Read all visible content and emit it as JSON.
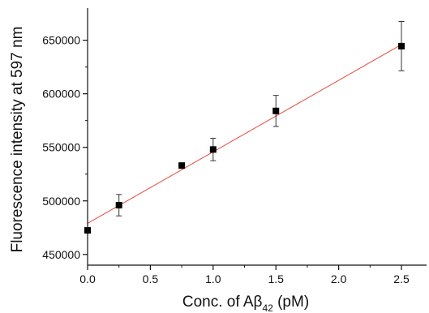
{
  "chart_data": {
    "type": "scatter",
    "xlabel": {
      "main": "Conc. of Aβ",
      "subscript": "42",
      "unit": " (pM)"
    },
    "ylabel": "Fluorescence intensity at 597 nm",
    "xlim": [
      0,
      2.7
    ],
    "ylim": [
      440000,
      680000
    ],
    "x_ticks": [
      0.0,
      0.5,
      1.0,
      1.5,
      2.0,
      2.5
    ],
    "x_tick_labels": [
      "0.0",
      "0.5",
      "1.0",
      "1.5",
      "2.0",
      "2.5"
    ],
    "y_ticks": [
      450000,
      500000,
      550000,
      600000,
      650000
    ],
    "y_tick_labels": [
      "450000",
      "500000",
      "550000",
      "600000",
      "650000"
    ],
    "grid": false,
    "series": [
      {
        "marker": "square",
        "color": "#000000",
        "points": [
          {
            "x": 0.0,
            "y": 472500,
            "err": 0
          },
          {
            "x": 0.25,
            "y": 496000,
            "err": 10000
          },
          {
            "x": 0.75,
            "y": 533000,
            "err": 0
          },
          {
            "x": 1.0,
            "y": 548000,
            "err": 10500
          },
          {
            "x": 1.5,
            "y": 584000,
            "err": 14500
          },
          {
            "x": 2.5,
            "y": 644500,
            "err": 23000
          }
        ]
      }
    ],
    "fit_line": {
      "color": "#e8473a",
      "x": [
        0.0,
        2.5
      ],
      "y": [
        479000,
        646000
      ]
    }
  }
}
